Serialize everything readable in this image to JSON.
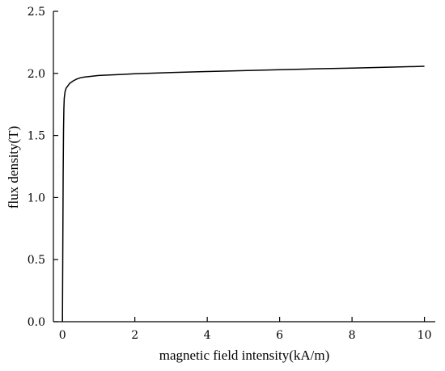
{
  "chart_data": {
    "type": "line",
    "xlabel": "magnetic field intensity(kA/m)",
    "ylabel": "flux density(T)",
    "xlim": [
      -0.25,
      10.3
    ],
    "ylim": [
      0,
      2.5
    ],
    "x_ticks": [
      0,
      2,
      4,
      6,
      8,
      10
    ],
    "y_ticks": [
      0.0,
      0.5,
      1.0,
      1.5,
      2.0,
      2.5
    ],
    "x_tick_labels": [
      "0",
      "2",
      "4",
      "6",
      "8",
      "10"
    ],
    "y_tick_labels": [
      "0.0",
      "0.5",
      "1.0",
      "1.5",
      "2.0",
      "2.5"
    ],
    "grid": false,
    "series": [
      {
        "x": [
          0.0,
          0.01,
          0.02,
          0.03,
          0.04,
          0.05,
          0.07,
          0.1,
          0.15,
          0.2,
          0.3,
          0.4,
          0.5,
          0.6,
          0.8,
          1.0,
          1.5,
          2.0,
          3.0,
          4.0,
          5.0,
          6.0,
          7.0,
          8.0,
          9.0,
          10.0
        ],
        "y": [
          0.0,
          0.6,
          1.2,
          1.55,
          1.72,
          1.8,
          1.85,
          1.88,
          1.9,
          1.92,
          1.94,
          1.955,
          1.965,
          1.97,
          1.977,
          1.983,
          1.99,
          1.997,
          2.007,
          2.015,
          2.022,
          2.03,
          2.037,
          2.043,
          2.05,
          2.057
        ]
      }
    ]
  }
}
